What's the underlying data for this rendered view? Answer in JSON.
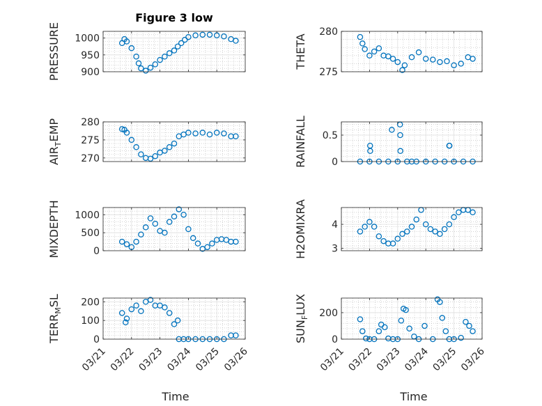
{
  "title": "Figure 3 low",
  "colors": {
    "marker": "#0072BD",
    "axis": "#262626",
    "grid": "#dfdfdf",
    "minor_grid": "#b8b8b8"
  },
  "chart_data": [
    {
      "type": "scatter",
      "marker": "circle",
      "ylabel": "PRESSURE",
      "ylim": [
        900,
        1020
      ],
      "yticks": [
        900,
        950,
        1000
      ],
      "xlim": [
        "03/21",
        "03/26"
      ],
      "xticks": [
        "03/21",
        "03/22",
        "03/23",
        "03/24",
        "03/25",
        "03/26"
      ],
      "grid": true,
      "minor_grid": true,
      "x": [
        "03/21 16:00",
        "03/21 18:00",
        "03/21 20:00",
        "03/22 00:00",
        "03/22 04:00",
        "03/22 06:00",
        "03/22 08:00",
        "03/22 12:00",
        "03/22 16:00",
        "03/22 20:00",
        "03/23 00:00",
        "03/23 04:00",
        "03/23 08:00",
        "03/23 12:00",
        "03/23 15:00",
        "03/23 18:00",
        "03/23 21:00",
        "03/24 00:00",
        "03/24 06:00",
        "03/24 12:00",
        "03/24 18:00",
        "03/25 00:00",
        "03/25 06:00",
        "03/25 12:00",
        "03/25 16:00"
      ],
      "y": [
        985,
        997,
        990,
        970,
        945,
        925,
        910,
        903,
        912,
        922,
        935,
        945,
        955,
        963,
        975,
        985,
        995,
        1003,
        1008,
        1010,
        1010,
        1008,
        1005,
        997,
        992
      ]
    },
    {
      "type": "scatter",
      "marker": "circle",
      "ylabel": "THETA",
      "ylim": [
        275,
        280
      ],
      "yticks": [
        275,
        280
      ],
      "xlim": [
        "03/21",
        "03/26"
      ],
      "xticks": [
        "03/21",
        "03/22",
        "03/23",
        "03/24",
        "03/25",
        "03/26"
      ],
      "grid": true,
      "minor_grid": true,
      "x": [
        "03/21 16:00",
        "03/21 18:00",
        "03/21 20:00",
        "03/22 00:00",
        "03/22 04:00",
        "03/22 08:00",
        "03/22 12:00",
        "03/22 16:00",
        "03/22 20:00",
        "03/23 00:00",
        "03/23 04:00",
        "03/23 06:00",
        "03/23 12:00",
        "03/23 18:00",
        "03/24 00:00",
        "03/24 06:00",
        "03/24 12:00",
        "03/24 18:00",
        "03/25 00:00",
        "03/25 06:00",
        "03/25 12:00",
        "03/25 16:00"
      ],
      "y": [
        279.3,
        278.5,
        277.8,
        277.0,
        277.5,
        277.9,
        277.0,
        276.9,
        276.6,
        276.2,
        275.2,
        275.8,
        276.8,
        277.4,
        276.6,
        276.5,
        276.2,
        276.3,
        275.8,
        276.0,
        276.8,
        276.6
      ]
    },
    {
      "type": "scatter",
      "marker": "circle",
      "ylabel": "AIR_TEMP",
      "ylim": [
        269,
        280
      ],
      "yticks": [
        270,
        275,
        280
      ],
      "xlim": [
        "03/21",
        "03/26"
      ],
      "xticks": [
        "03/21",
        "03/22",
        "03/23",
        "03/24",
        "03/25",
        "03/26"
      ],
      "grid": true,
      "minor_grid": true,
      "x": [
        "03/21 16:00",
        "03/21 18:00",
        "03/21 20:00",
        "03/22 00:00",
        "03/22 04:00",
        "03/22 08:00",
        "03/22 12:00",
        "03/22 16:00",
        "03/22 20:00",
        "03/23 00:00",
        "03/23 04:00",
        "03/23 08:00",
        "03/23 12:00",
        "03/23 16:00",
        "03/23 20:00",
        "03/24 00:00",
        "03/24 06:00",
        "03/24 12:00",
        "03/24 18:00",
        "03/25 00:00",
        "03/25 06:00",
        "03/25 12:00",
        "03/25 16:00"
      ],
      "y": [
        278,
        277.8,
        277,
        275,
        273,
        271,
        270,
        269.8,
        270.5,
        271.5,
        272,
        273,
        274,
        276,
        276.5,
        277,
        276.8,
        277,
        276.5,
        277,
        276.8,
        276,
        276
      ]
    },
    {
      "type": "scatter",
      "marker": "circle",
      "ylabel": "RAINFALL",
      "ylim": [
        0,
        0.75
      ],
      "yticks": [
        0,
        0.5
      ],
      "xlim": [
        "03/21",
        "03/26"
      ],
      "xticks": [
        "03/21",
        "03/22",
        "03/23",
        "03/24",
        "03/25",
        "03/26"
      ],
      "grid": true,
      "minor_grid": true,
      "x": [
        "03/21 16:00",
        "03/22 00:00",
        "03/22 08:00",
        "03/22 16:00",
        "03/23 00:00",
        "03/23 08:00",
        "03/23 12:00",
        "03/23 16:00",
        "03/24 00:00",
        "03/24 08:00",
        "03/24 16:00",
        "03/25 00:00",
        "03/25 08:00",
        "03/25 16:00",
        "03/22 00:30",
        "03/22 00:35",
        "03/22 19:00",
        "03/23 02:00",
        "03/23 02:10",
        "03/23 02:20",
        "03/24 20:00",
        "03/24 20:10"
      ],
      "y": [
        0,
        0,
        0,
        0,
        0,
        0,
        0,
        0,
        0,
        0,
        0,
        0,
        0,
        0,
        0.3,
        0.2,
        0.6,
        0.7,
        0.5,
        0.2,
        0.3,
        0.3
      ]
    },
    {
      "type": "scatter",
      "marker": "circle",
      "ylabel": "MIXDEPTH",
      "ylim": [
        0,
        1200
      ],
      "yticks": [
        0,
        500,
        1000
      ],
      "xlim": [
        "03/21",
        "03/26"
      ],
      "xticks": [
        "03/21",
        "03/22",
        "03/23",
        "03/24",
        "03/25",
        "03/26"
      ],
      "grid": true,
      "minor_grid": true,
      "x": [
        "03/21 16:00",
        "03/21 20:00",
        "03/22 00:00",
        "03/22 04:00",
        "03/22 08:00",
        "03/22 12:00",
        "03/22 16:00",
        "03/22 20:00",
        "03/23 00:00",
        "03/23 04:00",
        "03/23 08:00",
        "03/23 12:00",
        "03/23 16:00",
        "03/23 20:00",
        "03/24 00:00",
        "03/24 04:00",
        "03/24 08:00",
        "03/24 12:00",
        "03/24 16:00",
        "03/24 20:00",
        "03/25 00:00",
        "03/25 04:00",
        "03/25 08:00",
        "03/25 12:00",
        "03/25 16:00"
      ],
      "y": [
        250,
        180,
        100,
        250,
        450,
        650,
        900,
        750,
        550,
        500,
        800,
        950,
        1150,
        1000,
        600,
        350,
        200,
        50,
        100,
        200,
        300,
        320,
        300,
        250,
        250
      ]
    },
    {
      "type": "scatter",
      "marker": "circle",
      "ylabel": "H2OMIXRA",
      "ylim": [
        2.9,
        4.7
      ],
      "yticks": [
        3,
        4
      ],
      "xlim": [
        "03/21",
        "03/26"
      ],
      "xticks": [
        "03/21",
        "03/22",
        "03/23",
        "03/24",
        "03/25",
        "03/26"
      ],
      "grid": true,
      "minor_grid": true,
      "x": [
        "03/21 16:00",
        "03/21 20:00",
        "03/22 00:00",
        "03/22 04:00",
        "03/22 08:00",
        "03/22 12:00",
        "03/22 16:00",
        "03/22 20:00",
        "03/23 00:00",
        "03/23 04:00",
        "03/23 08:00",
        "03/23 12:00",
        "03/23 16:00",
        "03/23 20:00",
        "03/24 00:00",
        "03/24 04:00",
        "03/24 08:00",
        "03/24 12:00",
        "03/24 16:00",
        "03/24 20:00",
        "03/25 00:00",
        "03/25 04:00",
        "03/25 08:00",
        "03/25 12:00",
        "03/25 16:00"
      ],
      "y": [
        3.7,
        3.9,
        4.1,
        3.9,
        3.5,
        3.3,
        3.2,
        3.2,
        3.4,
        3.6,
        3.7,
        3.9,
        4.2,
        4.6,
        4.0,
        3.8,
        3.7,
        3.6,
        3.8,
        4.0,
        4.3,
        4.5,
        4.6,
        4.6,
        4.5
      ]
    },
    {
      "type": "scatter",
      "marker": "circle",
      "ylabel": "TERR_MSL",
      "ylim": [
        0,
        220
      ],
      "yticks": [
        0,
        100,
        200
      ],
      "xlim": [
        "03/21",
        "03/26"
      ],
      "xticks": [
        "03/21",
        "03/22",
        "03/23",
        "03/24",
        "03/25",
        "03/26"
      ],
      "grid": true,
      "minor_grid": true,
      "x": [
        "03/21 16:00",
        "03/21 20:00",
        "03/22 00:00",
        "03/22 04:00",
        "03/22 08:00",
        "03/22 12:00",
        "03/22 16:00",
        "03/22 20:00",
        "03/23 00:00",
        "03/23 04:00",
        "03/23 08:00",
        "03/23 12:00",
        "03/23 16:00",
        "03/23 20:00",
        "03/24 00:00",
        "03/24 06:00",
        "03/24 12:00",
        "03/24 18:00",
        "03/25 00:00",
        "03/25 06:00",
        "03/25 12:00",
        "03/25 16:00",
        "03/21 19:00",
        "03/23 15:00"
      ],
      "y": [
        140,
        110,
        160,
        180,
        150,
        200,
        210,
        180,
        180,
        170,
        140,
        80,
        0,
        0,
        0,
        0,
        0,
        0,
        0,
        0,
        20,
        20,
        90,
        100
      ]
    },
    {
      "type": "scatter",
      "marker": "circle",
      "ylabel": "SUN_FLUX",
      "ylim": [
        0,
        310
      ],
      "yticks": [
        0,
        200
      ],
      "xlim": [
        "03/21",
        "03/26"
      ],
      "xticks": [
        "03/21",
        "03/22",
        "03/23",
        "03/24",
        "03/25",
        "03/26"
      ],
      "grid": true,
      "minor_grid": true,
      "x": [
        "03/21 16:00",
        "03/21 18:00",
        "03/21 21:00",
        "03/22 00:00",
        "03/22 04:00",
        "03/22 08:00",
        "03/22 10:00",
        "03/22 13:00",
        "03/22 16:00",
        "03/22 20:00",
        "03/23 00:00",
        "03/23 03:00",
        "03/23 05:00",
        "03/23 07:00",
        "03/23 10:00",
        "03/23 14:00",
        "03/23 18:00",
        "03/23 23:00",
        "03/24 06:00",
        "03/24 10:00",
        "03/24 12:00",
        "03/24 14:00",
        "03/24 17:00",
        "03/24 20:00",
        "03/25 00:00",
        "03/25 06:00",
        "03/25 10:00",
        "03/25 13:00",
        "03/25 16:00"
      ],
      "y": [
        150,
        60,
        5,
        0,
        0,
        60,
        110,
        90,
        5,
        0,
        0,
        140,
        230,
        220,
        80,
        20,
        0,
        100,
        0,
        300,
        280,
        160,
        60,
        0,
        0,
        10,
        130,
        100,
        60
      ]
    }
  ],
  "xlabel": "Time"
}
